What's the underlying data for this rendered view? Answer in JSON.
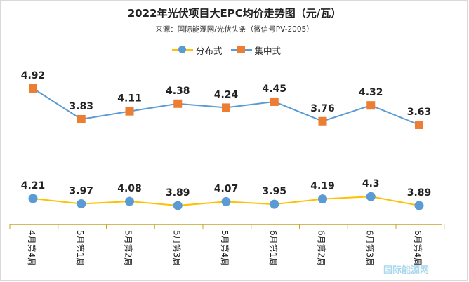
{
  "chart_data": {
    "type": "line",
    "title": "2022年光伏项目大EPC均价走势图（元/瓦）",
    "subtitle": "来源：国际能源网/光伏头条（微信号PV-2005）",
    "categories": [
      "4月第4周",
      "5月第1周",
      "5月第2周",
      "5月第3周",
      "5月第4周",
      "6月第1周",
      "6月第2周",
      "6月第3周",
      "6月第4周"
    ],
    "series": [
      {
        "name": "分布式",
        "color": "#ffc000",
        "marker_color": "#5b9bd5",
        "marker": "circle",
        "values": [
          4.21,
          3.97,
          4.08,
          3.89,
          4.07,
          3.95,
          4.19,
          4.3,
          3.89
        ]
      },
      {
        "name": "集中式",
        "color": "#5b9bd5",
        "marker_color": "#ed7d31",
        "marker": "square",
        "values": [
          4.92,
          3.83,
          4.11,
          4.38,
          4.24,
          4.45,
          3.76,
          4.32,
          3.63
        ]
      }
    ],
    "legend_position": "top",
    "grid": false
  },
  "watermark": "国际能源网"
}
